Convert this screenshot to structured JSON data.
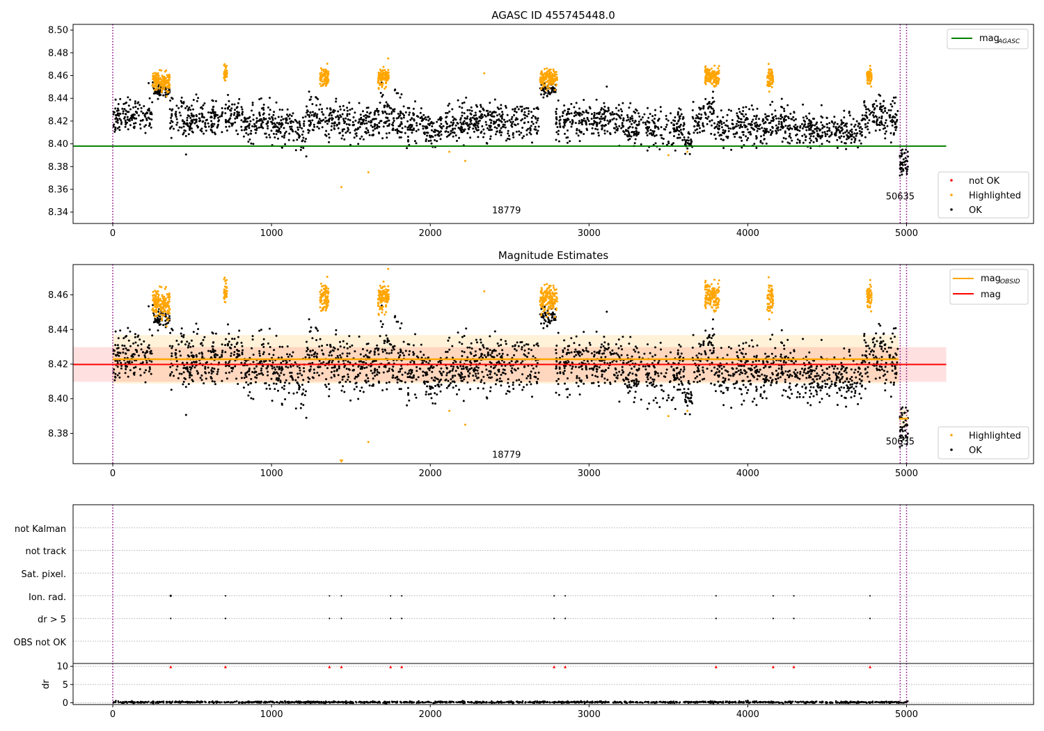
{
  "chart_data": [
    {
      "panel": "top",
      "type": "scatter",
      "title": "AGASC ID 455745448.0",
      "xlim": [
        -250,
        5800
      ],
      "ylim": [
        8.33,
        8.505
      ],
      "xticks": [
        0,
        1000,
        2000,
        3000,
        4000,
        5000
      ],
      "yticks": [
        8.34,
        8.36,
        8.38,
        8.4,
        8.42,
        8.44,
        8.46,
        8.48,
        8.5
      ],
      "vlines_dotted": [
        0,
        4960,
        5000
      ],
      "hline": {
        "name": "mag_AGASC",
        "y": 8.398,
        "x_range": [
          -250,
          5250
        ],
        "color": "#008000"
      },
      "obsid_labels": [
        {
          "text": "18779",
          "x": 2480,
          "y": 8.339
        },
        {
          "text": "50635",
          "x": 4960,
          "y": 8.351
        }
      ],
      "legends": [
        {
          "position": "top-right",
          "entries": [
            {
              "label": "mag",
              "sub": "AGASC",
              "kind": "line",
              "color": "#008000"
            }
          ]
        },
        {
          "position": "lower-right",
          "entries": [
            {
              "label": "not OK",
              "kind": "dot",
              "color": "#ff0000"
            },
            {
              "label": "Highlighted",
              "kind": "dot",
              "color": "#ffa500"
            },
            {
              "label": "OK",
              "kind": "dot",
              "color": "#000000"
            }
          ]
        }
      ],
      "ok_segments": [
        [
          0,
          250,
          8.425,
          0.008
        ],
        [
          250,
          360,
          8.447,
          0.003
        ],
        [
          360,
          720,
          8.422,
          0.008
        ],
        [
          720,
          820,
          8.427,
          0.008
        ],
        [
          820,
          1160,
          8.418,
          0.008
        ],
        [
          1160,
          1220,
          8.408,
          0.009
        ],
        [
          1220,
          1330,
          8.425,
          0.01
        ],
        [
          1330,
          1440,
          8.42,
          0.008
        ],
        [
          1440,
          1680,
          8.418,
          0.008
        ],
        [
          1680,
          1790,
          8.425,
          0.012
        ],
        [
          1790,
          1860,
          8.42,
          0.01
        ],
        [
          1860,
          2200,
          8.415,
          0.008
        ],
        [
          2200,
          2690,
          8.42,
          0.008
        ],
        [
          2690,
          2790,
          8.448,
          0.003
        ],
        [
          2790,
          3220,
          8.422,
          0.008
        ],
        [
          3220,
          3600,
          8.415,
          0.008
        ],
        [
          3600,
          3650,
          8.402,
          0.006
        ],
        [
          3650,
          3700,
          8.42,
          0.008
        ],
        [
          3700,
          3790,
          8.428,
          0.008
        ],
        [
          3790,
          4120,
          8.415,
          0.008
        ],
        [
          4120,
          4300,
          8.418,
          0.008
        ],
        [
          4300,
          4720,
          8.412,
          0.007
        ],
        [
          4720,
          4950,
          8.422,
          0.008
        ]
      ],
      "ok_tail": {
        "x_range": [
          4955,
          5010
        ],
        "y_range": [
          8.372,
          8.395
        ]
      },
      "highlighted_clusters": [
        [
          250,
          360,
          8.455,
          0.004
        ],
        [
          700,
          720,
          8.462,
          0.004
        ],
        [
          1305,
          1360,
          8.458,
          0.004
        ],
        [
          1670,
          1740,
          8.458,
          0.004
        ],
        [
          2690,
          2800,
          8.458,
          0.004
        ],
        [
          3730,
          3820,
          8.46,
          0.004
        ],
        [
          4120,
          4160,
          8.458,
          0.004
        ],
        [
          4750,
          4780,
          8.458,
          0.004
        ]
      ],
      "highlighted_outliers": [
        [
          1440,
          8.362
        ],
        [
          1610,
          8.375
        ],
        [
          2120,
          8.393
        ],
        [
          2220,
          8.385
        ],
        [
          2340,
          8.462
        ],
        [
          3500,
          8.39
        ],
        [
          3620,
          8.393
        ],
        [
          1735,
          8.475
        ],
        [
          705,
          8.47
        ]
      ]
    },
    {
      "panel": "middle",
      "type": "scatter",
      "title": "Magnitude Estimates",
      "xlim": [
        -250,
        5800
      ],
      "ylim": [
        8.3625,
        8.4775
      ],
      "xticks": [
        0,
        1000,
        2000,
        3000,
        4000,
        5000
      ],
      "yticks": [
        8.38,
        8.4,
        8.42,
        8.44,
        8.46
      ],
      "vlines_dotted": [
        0,
        4960,
        5000
      ],
      "mag_line": {
        "name": "mag",
        "y": 8.4198,
        "x_range": [
          -250,
          5250
        ],
        "color": "#ff0000",
        "band": [
          8.4098,
          8.4298
        ]
      },
      "mag_obsid_lines": [
        {
          "x_range": [
            0,
            4950
          ],
          "y": 8.4228,
          "band": [
            8.4088,
            8.4368
          ]
        },
        {
          "x_range": [
            4955,
            5010
          ],
          "y": 8.3885,
          "band": [
            8.383,
            8.394
          ]
        }
      ],
      "obsid_labels": [
        {
          "text": "18779",
          "x": 2480,
          "y": 8.366
        },
        {
          "text": "50635",
          "x": 4960,
          "y": 8.3735
        }
      ],
      "legends": [
        {
          "position": "top-right",
          "entries": [
            {
              "label": "mag",
              "sub": "OBSID",
              "kind": "line",
              "color": "#ffa500"
            },
            {
              "label": "mag",
              "kind": "line",
              "color": "#ff0000"
            }
          ]
        },
        {
          "position": "lower-right",
          "entries": [
            {
              "label": "Highlighted",
              "kind": "dot",
              "color": "#ffa500"
            },
            {
              "label": "OK",
              "kind": "dot",
              "color": "#000000"
            }
          ]
        }
      ]
    },
    {
      "panel": "flags",
      "type": "scatter",
      "ylabel_rows": [
        "not Kalman",
        "not track",
        "Sat. pixel.",
        "Ion. rad.",
        "dr > 5",
        "OBS not OK"
      ],
      "xlim": [
        -250,
        5800
      ],
      "vlines_dotted": [
        0,
        4960,
        5000
      ],
      "event_times": [
        365,
        710,
        1365,
        1440,
        1750,
        1820,
        2780,
        2850,
        3800,
        4160,
        4290,
        4770
      ],
      "event_rows": [
        "Ion. rad.",
        "dr > 5"
      ]
    },
    {
      "panel": "dr",
      "type": "scatter",
      "ylabel": "dr",
      "ylim": [
        -0.5,
        10.8
      ],
      "yticks": [
        0,
        5,
        10
      ],
      "xlim": [
        -250,
        5800
      ],
      "xticks": [
        0,
        1000,
        2000,
        3000,
        4000,
        5000
      ],
      "vlines_dotted": [
        0,
        4960,
        5000
      ],
      "baseline": {
        "y": 0.15,
        "spread": 0.12
      },
      "spike_markers": {
        "y": 9.9,
        "color": "#ff0000"
      }
    }
  ],
  "colors": {
    "ok": "#000000",
    "highlighted": "#ffa500",
    "not_ok": "#ff0000",
    "vline": "#800080",
    "grid": "#b0b0b0"
  }
}
